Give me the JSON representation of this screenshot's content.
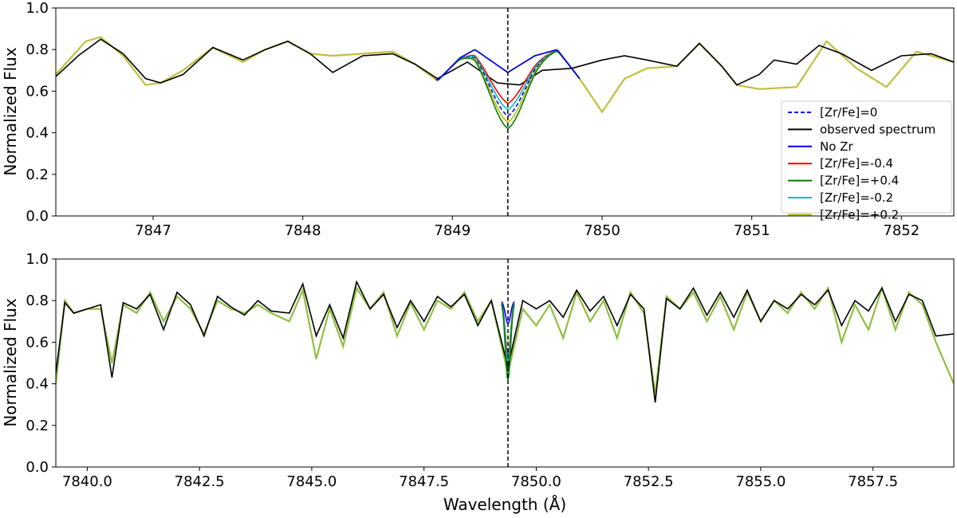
{
  "chart_data": [
    {
      "type": "line",
      "xlim": [
        7846.35,
        7852.35
      ],
      "ylim": [
        0.0,
        1.0
      ],
      "xticks": [
        7847,
        7848,
        7849,
        7850,
        7851,
        7852
      ],
      "xtick_labels": [
        "7847",
        "7848",
        "7849",
        "7850",
        "7851",
        "7852"
      ],
      "yticks": [
        0.0,
        0.2,
        0.4,
        0.6,
        0.8,
        1.0
      ],
      "ytick_labels": [
        "0.0",
        "0.2",
        "0.4",
        "0.6",
        "0.8",
        "1.0"
      ],
      "ylabel": "Normalized Flux",
      "xlabel": "",
      "grid": false,
      "legend_position": "right",
      "reference_line": {
        "x": 7849.37,
        "style": "dashed",
        "color": "#000000"
      },
      "series": [
        {
          "name": "observed spectrum",
          "color": "#000000",
          "x": [
            7846.35,
            7846.5,
            7846.65,
            7846.8,
            7846.95,
            7847.05,
            7847.2,
            7847.4,
            7847.6,
            7847.75,
            7847.9,
            7848.05,
            7848.2,
            7848.4,
            7848.6,
            7848.75,
            7848.9,
            7849.1,
            7849.3,
            7849.45,
            7849.6,
            7849.8,
            7850.0,
            7850.15,
            7850.3,
            7850.5,
            7850.65,
            7850.8,
            7850.9,
            7851.05,
            7851.15,
            7851.3,
            7851.45,
            7851.6,
            7851.8,
            7852.0,
            7852.2,
            7852.35
          ],
          "y": [
            0.67,
            0.77,
            0.85,
            0.78,
            0.66,
            0.64,
            0.68,
            0.81,
            0.75,
            0.8,
            0.84,
            0.78,
            0.69,
            0.77,
            0.78,
            0.73,
            0.66,
            0.74,
            0.64,
            0.63,
            0.7,
            0.71,
            0.75,
            0.77,
            0.75,
            0.72,
            0.83,
            0.72,
            0.63,
            0.68,
            0.75,
            0.73,
            0.82,
            0.78,
            0.7,
            0.77,
            0.78,
            0.74
          ]
        },
        {
          "name": "No Zr",
          "color": "#0000ff",
          "core_depth": 0.69
        },
        {
          "name": "[Zr/Fe]=-0.4",
          "color": "#ff0000",
          "core_depth": 0.54
        },
        {
          "name": "[Zr/Fe]=-0.2",
          "color": "#00bfbf",
          "core_depth": 0.51
        },
        {
          "name": "[Zr/Fe]=0",
          "color": "#0000ff",
          "line_style": "dashed",
          "core_depth": 0.48
        },
        {
          "name": "[Zr/Fe]=+0.2",
          "color": "#bfbf00",
          "core_depth": 0.45
        },
        {
          "name": "[Zr/Fe]=+0.4",
          "color": "#008000",
          "core_depth": 0.42
        }
      ],
      "synthetic_continuum": {
        "x": [
          7846.35,
          7846.55,
          7846.65,
          7846.8,
          7846.95,
          7847.05,
          7847.2,
          7847.4,
          7847.6,
          7847.75,
          7847.9,
          7848.05,
          7848.2,
          7848.4,
          7848.6,
          7848.75,
          7848.9,
          7849.05,
          7849.15,
          7849.37,
          7849.55,
          7849.7,
          7849.85,
          7850.0,
          7850.15,
          7850.3,
          7850.5,
          7850.65,
          7850.8,
          7850.9,
          7851.05,
          7851.3,
          7851.5,
          7851.7,
          7851.9,
          7852.1,
          7852.35
        ],
        "y": [
          0.68,
          0.84,
          0.86,
          0.77,
          0.63,
          0.64,
          0.7,
          0.81,
          0.74,
          0.8,
          0.84,
          0.78,
          0.77,
          0.78,
          0.79,
          0.73,
          0.65,
          0.76,
          0.8,
          0.69,
          0.77,
          0.8,
          0.66,
          0.5,
          0.66,
          0.71,
          0.72,
          0.83,
          0.72,
          0.63,
          0.61,
          0.62,
          0.84,
          0.71,
          0.62,
          0.79,
          0.74
        ]
      }
    },
    {
      "type": "line",
      "xlim": [
        7839.3,
        7859.3
      ],
      "ylim": [
        0.0,
        1.0
      ],
      "xticks": [
        7840.0,
        7842.5,
        7845.0,
        7847.5,
        7850.0,
        7852.5,
        7855.0,
        7857.5
      ],
      "xtick_labels": [
        "7840.0",
        "7842.5",
        "7845.0",
        "7847.5",
        "7850.0",
        "7852.5",
        "7855.0",
        "7857.5"
      ],
      "yticks": [
        0.0,
        0.2,
        0.4,
        0.6,
        0.8,
        1.0
      ],
      "ytick_labels": [
        "0.0",
        "0.2",
        "0.4",
        "0.6",
        "0.8",
        "1.0"
      ],
      "ylabel": "Normalized Flux",
      "xlabel": "Wavelength (Å)",
      "grid": false,
      "reference_line": {
        "x": 7849.37,
        "style": "dashed",
        "color": "#000000"
      },
      "observed": {
        "x": [
          7839.3,
          7839.5,
          7839.7,
          7840.0,
          7840.3,
          7840.55,
          7840.8,
          7841.1,
          7841.4,
          7841.7,
          7842.0,
          7842.3,
          7842.6,
          7842.9,
          7843.2,
          7843.5,
          7843.8,
          7844.1,
          7844.5,
          7844.8,
          7845.1,
          7845.4,
          7845.7,
          7846.0,
          7846.3,
          7846.6,
          7846.9,
          7847.2,
          7847.5,
          7847.8,
          7848.1,
          7848.4,
          7848.7,
          7849.0,
          7849.37,
          7849.7,
          7850.0,
          7850.3,
          7850.6,
          7850.9,
          7851.2,
          7851.5,
          7851.8,
          7852.1,
          7852.4,
          7852.65,
          7852.9,
          7853.2,
          7853.5,
          7853.8,
          7854.1,
          7854.4,
          7854.7,
          7855.0,
          7855.3,
          7855.6,
          7855.9,
          7856.2,
          7856.5,
          7856.8,
          7857.1,
          7857.4,
          7857.7,
          7858.0,
          7858.3,
          7858.6,
          7858.9,
          7859.3
        ],
        "y": [
          0.45,
          0.79,
          0.74,
          0.76,
          0.78,
          0.43,
          0.79,
          0.76,
          0.83,
          0.66,
          0.84,
          0.78,
          0.63,
          0.82,
          0.77,
          0.73,
          0.8,
          0.75,
          0.74,
          0.88,
          0.63,
          0.78,
          0.62,
          0.89,
          0.76,
          0.83,
          0.67,
          0.8,
          0.7,
          0.82,
          0.77,
          0.83,
          0.68,
          0.8,
          0.48,
          0.8,
          0.76,
          0.8,
          0.72,
          0.85,
          0.75,
          0.82,
          0.68,
          0.83,
          0.76,
          0.31,
          0.81,
          0.76,
          0.86,
          0.73,
          0.84,
          0.72,
          0.85,
          0.7,
          0.8,
          0.76,
          0.83,
          0.78,
          0.85,
          0.68,
          0.8,
          0.75,
          0.86,
          0.7,
          0.83,
          0.8,
          0.63,
          0.64
        ]
      },
      "synthetic": {
        "x": [
          7839.3,
          7839.5,
          7839.7,
          7840.0,
          7840.3,
          7840.55,
          7840.8,
          7841.1,
          7841.4,
          7841.7,
          7842.0,
          7842.3,
          7842.6,
          7842.9,
          7843.2,
          7843.5,
          7843.8,
          7844.1,
          7844.5,
          7844.8,
          7845.1,
          7845.4,
          7845.7,
          7846.0,
          7846.3,
          7846.6,
          7846.9,
          7847.2,
          7847.5,
          7847.8,
          7848.1,
          7848.4,
          7848.7,
          7849.0,
          7849.37,
          7849.7,
          7850.0,
          7850.3,
          7850.6,
          7850.9,
          7851.2,
          7851.5,
          7851.8,
          7852.1,
          7852.4,
          7852.65,
          7852.9,
          7853.2,
          7853.5,
          7853.8,
          7854.1,
          7854.4,
          7854.7,
          7855.0,
          7855.3,
          7855.6,
          7855.9,
          7856.2,
          7856.5,
          7856.8,
          7857.1,
          7857.4,
          7857.7,
          7858.0,
          7858.3,
          7858.6,
          7858.9,
          7859.3
        ],
        "y": [
          0.4,
          0.8,
          0.74,
          0.76,
          0.76,
          0.5,
          0.78,
          0.74,
          0.84,
          0.7,
          0.82,
          0.76,
          0.64,
          0.8,
          0.76,
          0.74,
          0.78,
          0.74,
          0.7,
          0.85,
          0.52,
          0.76,
          0.58,
          0.86,
          0.76,
          0.84,
          0.63,
          0.79,
          0.66,
          0.8,
          0.76,
          0.84,
          0.7,
          0.8,
          0.45,
          0.76,
          0.68,
          0.78,
          0.62,
          0.84,
          0.7,
          0.8,
          0.62,
          0.84,
          0.74,
          0.35,
          0.82,
          0.76,
          0.84,
          0.7,
          0.82,
          0.66,
          0.84,
          0.7,
          0.8,
          0.74,
          0.84,
          0.76,
          0.86,
          0.6,
          0.78,
          0.66,
          0.86,
          0.66,
          0.84,
          0.78,
          0.6,
          0.4
        ]
      }
    }
  ]
}
